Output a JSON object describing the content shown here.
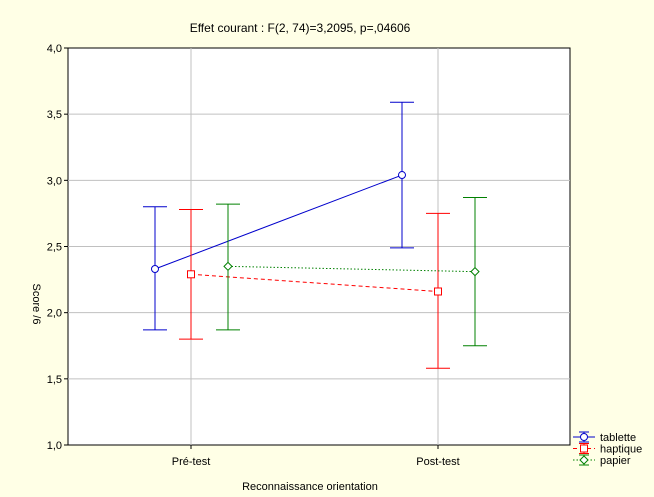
{
  "chart_data": {
    "type": "line",
    "title": "Effet courant : F(2, 74)=3,2095, p=,04606",
    "xlabel": "Reconnaissance orientation",
    "ylabel": "Score /6",
    "categories": [
      "Pré-test",
      "Post-test"
    ],
    "ylim": [
      1.0,
      4.0
    ],
    "yticks": [
      1.0,
      1.5,
      2.0,
      2.5,
      3.0,
      3.5,
      4.0
    ],
    "ytick_labels": [
      "1,0",
      "1,5",
      "2,0",
      "2,5",
      "3,0",
      "3,5",
      "4,0"
    ],
    "grid": true,
    "legend_position": "bottom-right",
    "series": [
      {
        "name": "tablette",
        "color": "#0000cc",
        "line_style": "solid",
        "marker": "circle",
        "values": [
          2.33,
          3.04
        ],
        "ci_low": [
          1.87,
          2.49
        ],
        "ci_high": [
          2.8,
          3.59
        ]
      },
      {
        "name": "haptique",
        "color": "#ff0000",
        "line_style": "dashed",
        "marker": "square",
        "values": [
          2.29,
          2.16
        ],
        "ci_low": [
          1.8,
          1.58
        ],
        "ci_high": [
          2.78,
          2.75
        ]
      },
      {
        "name": "papier",
        "color": "#008000",
        "line_style": "dotted",
        "marker": "diamond",
        "values": [
          2.35,
          2.31
        ],
        "ci_low": [
          1.87,
          1.75
        ],
        "ci_high": [
          2.82,
          2.87
        ]
      }
    ]
  }
}
